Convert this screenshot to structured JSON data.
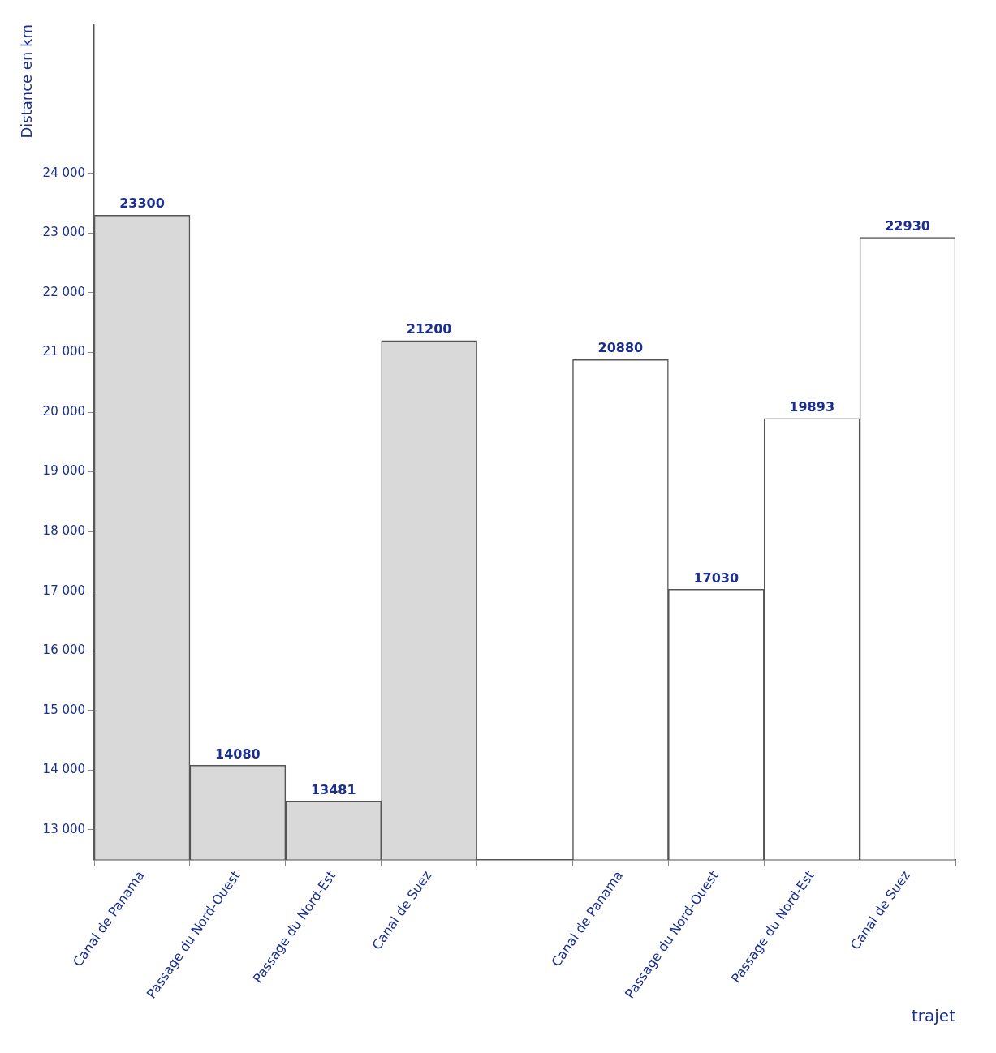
{
  "chart_data": {
    "type": "bar",
    "x_label": "trajet",
    "y_label": "Distance en km",
    "categories": [
      "Canal de Panama",
      "Passage du Nord-Ouest",
      "Passage du Nord-Est",
      "Canal de Suez",
      null,
      "Canal de Panama",
      "Passage du Nord-Ouest",
      "Passage du Nord-Est",
      "Canal de Suez"
    ],
    "values": [
      23300,
      14080,
      13481,
      21200,
      null,
      20880,
      17030,
      19893,
      22930
    ],
    "colors": [
      "#d9d9d9",
      "#d9d9d9",
      "#d9d9d9",
      "#d9d9d9",
      "#ffffff",
      "#ffffff",
      "#ffffff",
      "#ffffff",
      "#ffffff"
    ],
    "ylim": [
      12500,
      26500
    ],
    "yticks": [
      {
        "value": 13000,
        "label": "13 000"
      },
      {
        "value": 14000,
        "label": "14 000"
      },
      {
        "value": 15000,
        "label": "15 000"
      },
      {
        "value": 16000,
        "label": "16 000"
      },
      {
        "value": 17000,
        "label": "17 000"
      },
      {
        "value": 18000,
        "label": "18 000"
      },
      {
        "value": 19000,
        "label": "19 000"
      },
      {
        "value": 20000,
        "label": "20 000"
      },
      {
        "value": 21000,
        "label": "21 000"
      },
      {
        "value": 22000,
        "label": "22 000"
      },
      {
        "value": 23000,
        "label": "23 000"
      },
      {
        "value": 24000,
        "label": "24 000"
      }
    ],
    "grid": false,
    "data_labels": true
  }
}
